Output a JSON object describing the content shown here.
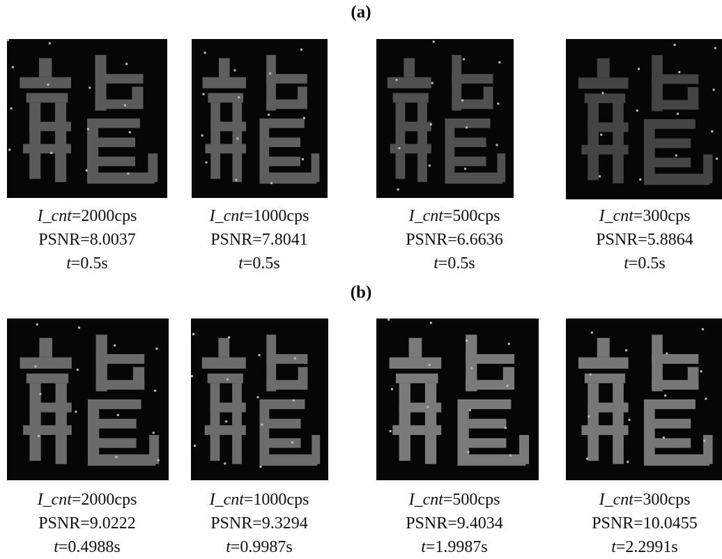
{
  "panels": [
    {
      "label": "(a)",
      "items": [
        {
          "count_var": "I_cnt",
          "count": "=2000cps",
          "psnr": "PSNR=8.0037",
          "time_var": "t",
          "time": "=0.5s"
        },
        {
          "count_var": "I_cnt",
          "count": "=1000cps",
          "psnr": "PSNR=7.8041",
          "time_var": "t",
          "time": "=0.5s"
        },
        {
          "count_var": "I_cnt",
          "count": "=500cps",
          "psnr": "PSNR=6.6636",
          "time_var": "t",
          "time": "=0.5s"
        },
        {
          "count_var": "I_cnt",
          "count": "=300cps",
          "psnr": "PSNR=5.8864",
          "time_var": "t",
          "time": "=0.5s"
        }
      ]
    },
    {
      "label": "(b)",
      "items": [
        {
          "count_var": "I_cnt",
          "count": "=2000cps",
          "psnr": "PSNR=9.0222",
          "time_var": "t",
          "time": "=0.4988s"
        },
        {
          "count_var": "I_cnt",
          "count": "=1000cps",
          "psnr": "PSNR=9.3294",
          "time_var": "t",
          "time": "=0.9987s"
        },
        {
          "count_var": "I_cnt",
          "count": "=500cps",
          "psnr": "PSNR=9.4034",
          "time_var": "t",
          "time": "=1.9987s"
        },
        {
          "count_var": "I_cnt",
          "count": "=300cps",
          "psnr": "PSNR=10.0455",
          "time_var": "t",
          "time": "=2.2991s"
        }
      ]
    }
  ]
}
